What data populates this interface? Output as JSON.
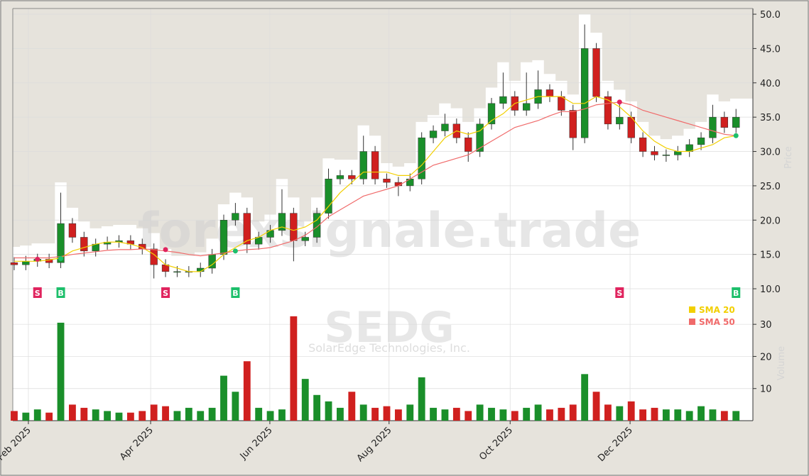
{
  "chart_data": {
    "type": "candlestick",
    "watermark": "forexsignale.trade",
    "symbol": "SEDG",
    "company": "SolarEdge Technologies, Inc.",
    "y_label": "Price",
    "y2_label": "Volume",
    "xlim": [
      -0.12,
      63.45
    ],
    "ylim": [
      8.04,
      50.83
    ],
    "yticks": [
      {
        "value": 10,
        "label": "10.0"
      },
      {
        "value": 15,
        "label": "15.0"
      },
      {
        "value": 20,
        "label": "20.0"
      },
      {
        "value": 25,
        "label": "25.0"
      },
      {
        "value": 30,
        "label": "30.0"
      },
      {
        "value": 35,
        "label": "35.0"
      },
      {
        "value": 40,
        "label": "40.0"
      },
      {
        "value": 45,
        "label": "45.0"
      },
      {
        "value": 50,
        "label": "50.0"
      }
    ],
    "y2lim": [
      0,
      36
    ],
    "y2ticks": [
      10,
      20,
      30
    ],
    "xticks": [
      {
        "value": 1.22,
        "label": "Feb 2025"
      },
      {
        "value": 11.72,
        "label": "Apr 2025"
      },
      {
        "value": 21.96,
        "label": "Jun 2025"
      },
      {
        "value": 32.2,
        "label": "Aug 2025"
      },
      {
        "value": 42.6,
        "label": "Oct 2025"
      },
      {
        "value": 52.9,
        "label": "Dec 2025"
      }
    ],
    "grid": true,
    "up_color": "#1a8f2a",
    "down_color": "#d0201f",
    "open": [
      13.8,
      13.5,
      14,
      14.3,
      13.8,
      19.5,
      17.5,
      15.5,
      16.5,
      16.8,
      17,
      16.5,
      15.8,
      13.5,
      12.5,
      12.5,
      12.5,
      13,
      15,
      20,
      21,
      16.5,
      17.5,
      18.5,
      21,
      17,
      17.5,
      21,
      26,
      26.5,
      26,
      30,
      26,
      25.5,
      25,
      26,
      32,
      33,
      34,
      32,
      30,
      34,
      37,
      38,
      36,
      37,
      39,
      38,
      36,
      32,
      45,
      38,
      34,
      35,
      32,
      30,
      29.5,
      29.5,
      30,
      31,
      32,
      35,
      33.5
    ],
    "high": [
      14.6,
      14.8,
      15.1,
      15.1,
      24,
      20.3,
      18.3,
      17.3,
      17.6,
      17.8,
      17.8,
      17.3,
      16.6,
      14.3,
      13.3,
      13.3,
      13.8,
      15.8,
      20.8,
      22.5,
      21.8,
      18.3,
      19.3,
      24.5,
      21.8,
      18.3,
      21.8,
      27.5,
      27.3,
      27.3,
      32.3,
      30.8,
      26.8,
      26.3,
      26.8,
      32.8,
      33.8,
      35.5,
      34.8,
      32.8,
      34.8,
      37.8,
      41.5,
      38.8,
      41.5,
      41.8,
      39.8,
      38.8,
      36.8,
      48.5,
      45.8,
      38.8,
      37.5,
      35.8,
      32.8,
      30.8,
      30.3,
      30.8,
      31.8,
      32.8,
      36.8,
      35.8,
      36.2
    ],
    "low": [
      12.7,
      12.7,
      13.2,
      13,
      13,
      16.7,
      14.7,
      14.7,
      15.7,
      16,
      15.7,
      15,
      11.5,
      11.7,
      11.7,
      11.7,
      11.7,
      12.2,
      14.2,
      19.2,
      15.2,
      15.7,
      16.7,
      17.7,
      14,
      16.2,
      16.7,
      20.2,
      25.2,
      25.2,
      25.2,
      25.2,
      24.7,
      23.5,
      24.2,
      25.2,
      31.2,
      32.2,
      31.2,
      28.5,
      29.2,
      33.2,
      36.2,
      35.2,
      35.2,
      36.2,
      37.2,
      35.2,
      30.2,
      31.2,
      37.2,
      33.2,
      33.2,
      31.2,
      29.2,
      28.7,
      28.5,
      28.7,
      29.2,
      30.2,
      31.2,
      32.7,
      32.7
    ],
    "close": [
      13.5,
      14,
      14.3,
      13.8,
      19.5,
      17.5,
      15.5,
      16.5,
      16.8,
      17,
      16.5,
      15.8,
      13.5,
      12.5,
      12.5,
      12.5,
      13,
      15,
      20,
      21,
      16.5,
      17.5,
      18.5,
      21,
      17,
      17.5,
      21,
      26,
      26.5,
      26,
      30,
      26,
      25.5,
      25,
      26,
      32,
      33,
      34,
      32,
      30,
      34,
      37,
      38,
      36,
      37,
      39,
      38,
      36,
      32,
      45,
      38,
      34,
      35,
      32,
      30,
      29.5,
      29.5,
      30,
      31,
      32,
      35,
      33.5,
      35
    ],
    "volume": [
      3,
      2.5,
      3.5,
      2.5,
      30.5,
      5,
      4,
      3.5,
      3,
      2.5,
      2.5,
      3,
      5,
      4.5,
      3,
      4,
      3,
      4,
      14,
      9,
      18.5,
      4,
      3,
      3.5,
      32.5,
      13,
      8,
      6,
      4,
      9,
      5,
      4,
      4.5,
      3.5,
      5,
      13.5,
      4,
      3.5,
      4,
      3,
      5,
      4,
      3.5,
      3,
      4,
      5,
      3.5,
      4,
      5,
      14.5,
      9,
      5,
      4.5,
      6,
      3.5,
      4,
      3.5,
      3.5,
      3,
      4.5,
      3.5,
      3,
      3
    ],
    "series": [
      {
        "name": "SMA 20",
        "color": "#f2cf00",
        "values": [
          14,
          14,
          14,
          14.2,
          14.5,
          15.5,
          16,
          16.5,
          16.8,
          16.8,
          16.5,
          16,
          15,
          13.5,
          13,
          12.5,
          12.5,
          13.5,
          15,
          16,
          17,
          17.5,
          18.5,
          19,
          18.5,
          19,
          20,
          22,
          24,
          25.5,
          27,
          27,
          27,
          26.5,
          26.5,
          28,
          30,
          32,
          33,
          32.5,
          33,
          34.5,
          35.5,
          37,
          37.5,
          38,
          38,
          38,
          37,
          37,
          38,
          37.5,
          36.5,
          35,
          33,
          31.5,
          30.5,
          30,
          30,
          30.5,
          31,
          32,
          32.3
        ]
      },
      {
        "name": "SMA 50",
        "color": "#f06a6a",
        "values": [
          14.5,
          14.5,
          14.5,
          14.5,
          14.7,
          15,
          15.2,
          15.4,
          15.6,
          15.7,
          15.7,
          15.8,
          15.7,
          15.5,
          15.3,
          15.0,
          14.8,
          15,
          15.2,
          15.5,
          15.7,
          15.8,
          16,
          16.5,
          17,
          17.8,
          19,
          20.5,
          21.5,
          22.5,
          23.5,
          24,
          24.5,
          25,
          26,
          27,
          28,
          28.5,
          29,
          29.5,
          30.5,
          31.5,
          32.5,
          33.5,
          34,
          34.5,
          35.2,
          35.8,
          35.8,
          36.2,
          36.8,
          37,
          37.2,
          36.8,
          36,
          35.5,
          35,
          34.5,
          34,
          33.5,
          33,
          32.5,
          32.3
        ]
      }
    ],
    "signals": [
      {
        "index": 2,
        "price": 14.3,
        "label": "S",
        "color": "#e0245e"
      },
      {
        "index": 4,
        "price": 14.4,
        "label": "B",
        "color": "#1dbf6b"
      },
      {
        "index": 13,
        "price": 15.7,
        "label": "S",
        "color": "#e0245e"
      },
      {
        "index": 19,
        "price": 15.5,
        "label": "B",
        "color": "#1dbf6b"
      },
      {
        "index": 52,
        "price": 37.2,
        "label": "S",
        "color": "#e0245e"
      },
      {
        "index": 62,
        "price": 32.3,
        "label": "B",
        "color": "#1dbf6b"
      }
    ]
  }
}
